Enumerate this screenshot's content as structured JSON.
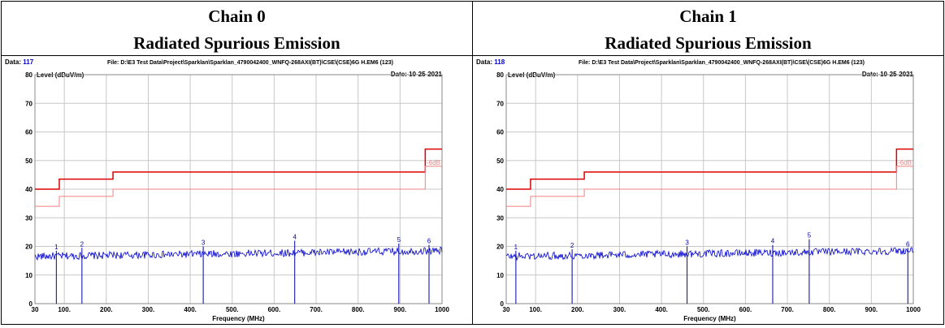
{
  "colors": {
    "limit": "#dd0000",
    "limit_margin": "#f08080",
    "trace": "#0000cc",
    "marker": "#0000aa",
    "grid": "#c8c8c8"
  },
  "panels": [
    {
      "chain_title": "Chain 0",
      "subtitle": "Radiated Spurious Emission",
      "data_label": "Data:",
      "data_value": "117",
      "file_text": "File: D:\\E3 Test Data\\Project\\Sparklan\\Sparklan_4790042400_WNFQ-268AXI(BT)\\CSE\\(CSE)6G H.EM6 (123)",
      "date_text": "Date: 10-25-2021",
      "y_axis_label": "Level (dBuV/m)",
      "x_axis_label": "Frequency (MHz)",
      "margin_label": "-6dB"
    },
    {
      "chain_title": "Chain 1",
      "subtitle": "Radiated Spurious Emission",
      "data_label": "Data:",
      "data_value": "118",
      "file_text": "File: D:\\E3 Test Data\\Project\\Sparklan\\Sparklan_4790042400_WNFQ-268AXI(BT)\\CSE\\(CSE)6G H.EM6 (123)",
      "date_text": "Date: 10-25-2021",
      "y_axis_label": "Level (dBuV/m)",
      "x_axis_label": "Frequency (MHz)",
      "margin_label": "-6dB"
    }
  ],
  "chart_data": [
    {
      "type": "line",
      "xlabel": "Frequency (MHz)",
      "ylabel": "Level (dBuV/m)",
      "xlim": [
        30,
        1000
      ],
      "ylim": [
        0,
        80
      ],
      "x_ticks": [
        "30",
        "100.",
        "200.",
        "300.",
        "400.",
        "500.",
        "600.",
        "700.",
        "800.",
        "900.",
        "1000"
      ],
      "y_ticks": [
        "0",
        "10",
        "20",
        "30",
        "40",
        "50",
        "60",
        "70",
        "80"
      ],
      "grid": true,
      "limit_line": {
        "x": [
          30,
          88,
          88,
          216,
          216,
          960,
          960,
          1000
        ],
        "y": [
          40,
          40,
          43.5,
          43.5,
          46,
          46,
          54,
          54
        ]
      },
      "margin_line": {
        "x": [
          30,
          88,
          88,
          216,
          216,
          960,
          960,
          1000
        ],
        "y": [
          34,
          34,
          37.5,
          37.5,
          40,
          40,
          48,
          48
        ]
      },
      "noise_floor": {
        "start": 16.5,
        "end": 18.5
      },
      "markers": [
        {
          "label": "1",
          "freq": 81,
          "level": 18.5
        },
        {
          "label": "2",
          "freq": 142,
          "level": 19.5
        },
        {
          "label": "3",
          "freq": 431,
          "level": 20
        },
        {
          "label": "4",
          "freq": 649,
          "level": 22
        },
        {
          "label": "5",
          "freq": 897,
          "level": 21
        },
        {
          "label": "6",
          "freq": 969,
          "level": 20.5
        }
      ]
    },
    {
      "type": "line",
      "xlabel": "Frequency (MHz)",
      "ylabel": "Level (dBuV/m)",
      "xlim": [
        30,
        1000
      ],
      "ylim": [
        0,
        80
      ],
      "x_ticks": [
        "30",
        "100.",
        "200.",
        "300.",
        "400.",
        "500.",
        "600.",
        "700.",
        "800.",
        "900.",
        "1000"
      ],
      "y_ticks": [
        "0",
        "10",
        "20",
        "30",
        "40",
        "50",
        "60",
        "70",
        "80"
      ],
      "grid": true,
      "limit_line": {
        "x": [
          30,
          88,
          88,
          216,
          216,
          960,
          960,
          1000
        ],
        "y": [
          40,
          40,
          43.5,
          43.5,
          46,
          46,
          54,
          54
        ]
      },
      "margin_line": {
        "x": [
          30,
          88,
          88,
          216,
          216,
          960,
          960,
          1000
        ],
        "y": [
          34,
          34,
          37.5,
          37.5,
          40,
          40,
          48,
          48
        ]
      },
      "noise_floor": {
        "start": 16.5,
        "end": 18.5
      },
      "markers": [
        {
          "label": "1",
          "freq": 53,
          "level": 18.5
        },
        {
          "label": "2",
          "freq": 187,
          "level": 19
        },
        {
          "label": "3",
          "freq": 461,
          "level": 20
        },
        {
          "label": "4",
          "freq": 665,
          "level": 20.5
        },
        {
          "label": "5",
          "freq": 752,
          "level": 22.5
        },
        {
          "label": "6",
          "freq": 987,
          "level": 19.5
        }
      ]
    }
  ]
}
